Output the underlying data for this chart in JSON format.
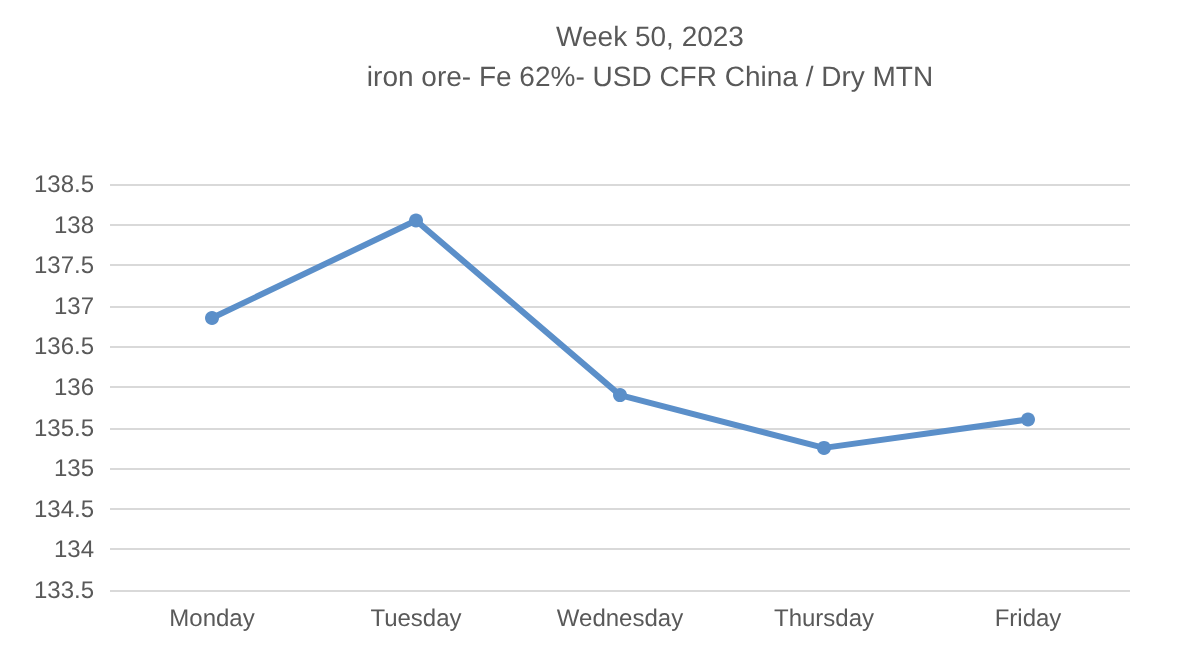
{
  "chart_data": {
    "type": "line",
    "title": "Week 50, 2023",
    "subtitle": "iron ore- Fe 62%- USD CFR China / Dry MTN",
    "categories": [
      "Monday",
      "Tuesday",
      "Wednesday",
      "Thursday",
      "Friday"
    ],
    "series": [
      {
        "color": "#5b8fc9",
        "values": [
          136.85,
          138.05,
          135.9,
          135.25,
          135.6
        ]
      }
    ],
    "ylim": [
      133.5,
      138.5
    ],
    "yticks": [
      133.5,
      134,
      134.5,
      135,
      135.5,
      136,
      136.5,
      137,
      137.5,
      138,
      138.5
    ],
    "grid": "y",
    "marker": "circle",
    "line_style": "solid"
  }
}
